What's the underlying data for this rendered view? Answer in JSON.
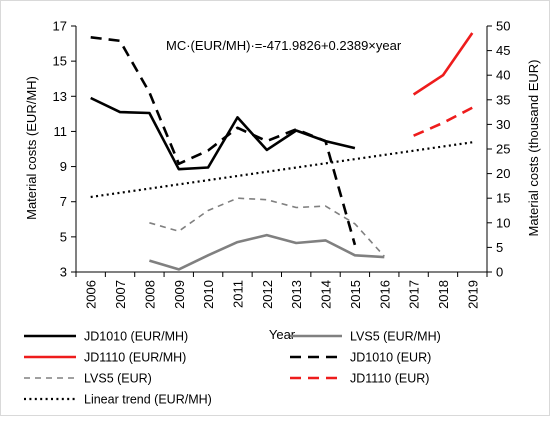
{
  "chart_data": {
    "type": "line",
    "title": "",
    "equation": "MC·(EUR/MH)·=-471.9826+0.2389×year",
    "xlabel": "Year",
    "ylabel_left": "Material costs (EUR/MH)",
    "ylabel_right": "Material costs (thousand EUR)",
    "x_categories": [
      "2006",
      "2007",
      "2008",
      "2009",
      "2010",
      "2011",
      "2012",
      "2013",
      "2014",
      "2015",
      "2016",
      "2017",
      "2018",
      "2019"
    ],
    "ylim_left": [
      3,
      17
    ],
    "ylim_right": [
      0,
      50
    ],
    "yticks_left": [
      "3",
      "5",
      "7",
      "9",
      "11",
      "13",
      "15",
      "17"
    ],
    "yticks_right": [
      "0",
      "5",
      "10",
      "15",
      "20",
      "25",
      "30",
      "35",
      "40",
      "45",
      "50"
    ],
    "grid": false,
    "legend_position": "bottom",
    "series": [
      {
        "name": "JD1010 (EUR/MH)",
        "axis": "left",
        "color": "#000000",
        "dash": "solid",
        "width": 2.6,
        "x": [
          2006,
          2007,
          2008,
          2009,
          2010,
          2011,
          2012,
          2013,
          2014,
          2015
        ],
        "values": [
          12.9,
          12.1,
          12.05,
          8.85,
          8.95,
          11.8,
          9.95,
          11.05,
          10.45,
          10.05
        ]
      },
      {
        "name": "LVS5 (EUR/MH)",
        "axis": "left",
        "color": "#808080",
        "dash": "solid",
        "width": 2.6,
        "x": [
          2008,
          2009,
          2010,
          2011,
          2012,
          2013,
          2014,
          2015,
          2016
        ],
        "values": [
          3.65,
          3.15,
          3.95,
          4.7,
          5.1,
          4.65,
          4.8,
          3.95,
          3.85
        ]
      },
      {
        "name": "JD1110 (EUR/MH)",
        "axis": "left",
        "color": "#ee1c1c",
        "dash": "solid",
        "width": 2.6,
        "x": [
          2017,
          2018,
          2019
        ],
        "values": [
          13.1,
          14.2,
          16.6
        ]
      },
      {
        "name": "JD1010 (EUR)",
        "axis": "right",
        "color": "#000000",
        "dash": "long",
        "width": 2.6,
        "x": [
          2006,
          2007,
          2008,
          2009,
          2010,
          2011,
          2012,
          2013,
          2014,
          2015
        ],
        "values": [
          47.7,
          47.0,
          36.5,
          22.0,
          24.7,
          29.3,
          26.6,
          29.0,
          26.6,
          5.5
        ]
      },
      {
        "name": "LVS5 (EUR)",
        "axis": "right",
        "color": "#808080",
        "dash": "short",
        "width": 1.6,
        "x": [
          2008,
          2009,
          2010,
          2011,
          2012,
          2013,
          2014,
          2015,
          2016
        ],
        "values": [
          10.0,
          8.3,
          12.5,
          15.0,
          14.7,
          13.1,
          13.4,
          9.8,
          3.2
        ]
      },
      {
        "name": "JD1110 (EUR)",
        "axis": "right",
        "color": "#ee1c1c",
        "dash": "long",
        "width": 2.6,
        "x": [
          2017,
          2018,
          2019
        ],
        "values": [
          27.7,
          30.3,
          33.4
        ]
      },
      {
        "name": "Linear trend (EUR/MH)",
        "axis": "left",
        "color": "#000000",
        "dash": "dot",
        "width": 2.2,
        "x": [
          2006,
          2019
        ],
        "values": [
          7.27,
          10.38
        ]
      }
    ]
  }
}
